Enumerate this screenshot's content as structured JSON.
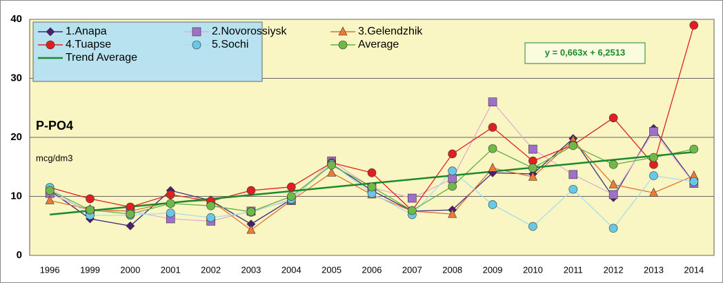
{
  "chart_data": {
    "type": "line",
    "label": "P-PO4",
    "unit": "mcg/dm3",
    "equation": "y = 0,663x + 6,2513",
    "categories": [
      "1996",
      "1999",
      "2000",
      "2001",
      "2002",
      "2003",
      "2004",
      "2005",
      "2006",
      "2007",
      "2008",
      "2009",
      "2010",
      "2011",
      "2012",
      "2013",
      "2014"
    ],
    "ylim": [
      0,
      40
    ],
    "yticks": [
      0,
      10,
      20,
      30,
      40
    ],
    "grid": true,
    "legend": "top-left",
    "series": [
      {
        "name": "1.Anapa",
        "marker": "diamond",
        "color": "#4a1f6e",
        "line_color": "#3a2a80",
        "values": [
          11,
          6.2,
          5,
          11,
          9.3,
          5.3,
          9.5,
          15.5,
          11,
          7.5,
          7.7,
          14,
          13.8,
          19.8,
          9.8,
          21.5,
          12.3
        ]
      },
      {
        "name": "2.Novorossiysk",
        "marker": "square",
        "color": "#a070c8",
        "line_color": "#e0b0d0",
        "values": [
          10.5,
          7.5,
          7.5,
          6.2,
          5.8,
          7.5,
          9.3,
          16,
          11.5,
          9.7,
          13,
          26,
          18,
          13.7,
          10.3,
          21,
          12.2
        ]
      },
      {
        "name": "3.Gelendzhik",
        "marker": "triangle",
        "color": "#f07838",
        "line_color": "#e07030",
        "values": [
          9.3,
          7.8,
          7.5,
          9,
          9.3,
          4.3,
          9.3,
          14,
          10.3,
          7.5,
          7,
          14.8,
          13.3,
          19.5,
          12,
          10.6,
          13.5
        ]
      },
      {
        "name": "4.Tuapse",
        "marker": "circle",
        "color": "#e02020",
        "line_color": "#e02020",
        "values": [
          11.5,
          9.6,
          8.2,
          10.3,
          9.2,
          11,
          11.6,
          15.7,
          14,
          7.6,
          17.2,
          21.7,
          16,
          18.7,
          23.3,
          15.4,
          39
        ]
      },
      {
        "name": "5.Sochi",
        "marker": "circle",
        "color": "#68c8e8",
        "line_color": "#a8dcec",
        "values": [
          11.5,
          6.8,
          6.8,
          7.2,
          6.4,
          7.3,
          9.5,
          15.5,
          10.5,
          6.9,
          14.3,
          8.6,
          4.9,
          11.2,
          4.6,
          13.5,
          12.5
        ]
      },
      {
        "name": "Average",
        "marker": "circle",
        "color": "#70b848",
        "line_color": "#60b040",
        "values": [
          11,
          7.7,
          7,
          8.8,
          8.4,
          7.4,
          10,
          15.3,
          11.6,
          7.6,
          11.7,
          18.1,
          14.8,
          18.6,
          15.4,
          16.6,
          18
        ]
      },
      {
        "name": "Trend Average",
        "marker": "none",
        "color": "#1a8a2a",
        "line_color": "#1a8a2a",
        "values": [
          6.91,
          7.58,
          8.24,
          8.9,
          9.57,
          10.23,
          10.89,
          11.56,
          12.22,
          12.88,
          13.54,
          14.21,
          14.87,
          15.53,
          16.2,
          16.86,
          17.52
        ]
      }
    ]
  }
}
